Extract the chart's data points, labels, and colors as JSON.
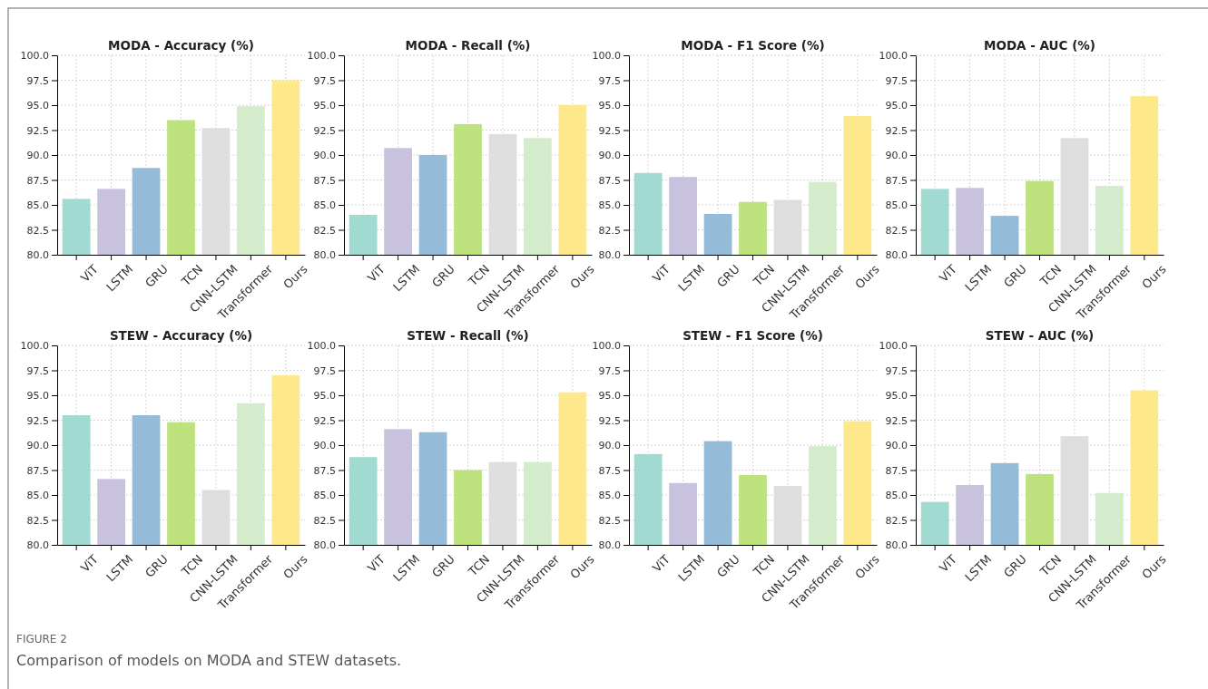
{
  "chart_data": [
    {
      "type": "bar",
      "title": "MODA - Accuracy (%)",
      "categories": [
        "ViT",
        "LSTM",
        "GRU",
        "TCN",
        "CNN-LSTM",
        "Transformer",
        "Ours"
      ],
      "values": [
        85.6,
        86.6,
        88.7,
        93.5,
        92.7,
        94.9,
        97.5
      ],
      "colors": [
        "#a0dad0",
        "#c8c2df",
        "#94bcd9",
        "#bde27e",
        "#dedede",
        "#d3edcc",
        "#fde98b"
      ],
      "ylim": [
        80,
        100
      ],
      "yticks": [
        {
          "value": 80,
          "label": "80.0"
        },
        {
          "value": 82.5,
          "label": "82.5"
        },
        {
          "value": 85,
          "label": "85.0"
        },
        {
          "value": 87.5,
          "label": "87.5"
        },
        {
          "value": 90,
          "label": "90.0"
        },
        {
          "value": 92.5,
          "label": "92.5"
        },
        {
          "value": 95,
          "label": "95.0"
        },
        {
          "value": 97.5,
          "label": "97.5"
        },
        {
          "value": 100,
          "label": "100.0"
        }
      ],
      "grid": true,
      "annotations": [
        "FIGURE 2",
        "Comparison of models on MODA and STEW datasets."
      ]
    },
    {
      "type": "bar",
      "title": "MODA - Recall (%)",
      "categories": [
        "ViT",
        "LSTM",
        "GRU",
        "TCN",
        "CNN-LSTM",
        "Transformer",
        "Ours"
      ],
      "values": [
        84.0,
        90.7,
        90.0,
        93.1,
        92.1,
        91.7,
        95.0
      ],
      "colors": [
        "#a0dad0",
        "#c8c2df",
        "#94bcd9",
        "#bde27e",
        "#dedede",
        "#d3edcc",
        "#fde98b"
      ],
      "ylim": [
        80,
        100
      ],
      "yticks": [
        {
          "value": 80,
          "label": "80.0"
        },
        {
          "value": 82.5,
          "label": "82.5"
        },
        {
          "value": 85,
          "label": "85.0"
        },
        {
          "value": 87.5,
          "label": "87.5"
        },
        {
          "value": 90,
          "label": "90.0"
        },
        {
          "value": 92.5,
          "label": "92.5"
        },
        {
          "value": 95,
          "label": "95.0"
        },
        {
          "value": 97.5,
          "label": "97.5"
        },
        {
          "value": 100,
          "label": "100.0"
        }
      ],
      "grid": true
    },
    {
      "type": "bar",
      "title": "MODA - F1 Score (%)",
      "categories": [
        "ViT",
        "LSTM",
        "GRU",
        "TCN",
        "CNN-LSTM",
        "Transformer",
        "Ours"
      ],
      "values": [
        88.2,
        87.8,
        84.1,
        85.3,
        85.5,
        87.3,
        93.9
      ],
      "colors": [
        "#a0dad0",
        "#c8c2df",
        "#94bcd9",
        "#bde27e",
        "#dedede",
        "#d3edcc",
        "#fde98b"
      ],
      "ylim": [
        80,
        100
      ],
      "yticks": [
        {
          "value": 80,
          "label": "80.0"
        },
        {
          "value": 82.5,
          "label": "82.5"
        },
        {
          "value": 85,
          "label": "85.0"
        },
        {
          "value": 87.5,
          "label": "87.5"
        },
        {
          "value": 90,
          "label": "90.0"
        },
        {
          "value": 92.5,
          "label": "92.5"
        },
        {
          "value": 95,
          "label": "95.0"
        },
        {
          "value": 97.5,
          "label": "97.5"
        },
        {
          "value": 100,
          "label": "100.0"
        }
      ],
      "grid": true
    },
    {
      "type": "bar",
      "title": "MODA - AUC (%)",
      "categories": [
        "ViT",
        "LSTM",
        "GRU",
        "TCN",
        "CNN-LSTM",
        "Transformer",
        "Ours"
      ],
      "values": [
        86.6,
        86.7,
        83.9,
        87.4,
        91.7,
        86.9,
        95.9
      ],
      "colors": [
        "#a0dad0",
        "#c8c2df",
        "#94bcd9",
        "#bde27e",
        "#dedede",
        "#d3edcc",
        "#fde98b"
      ],
      "ylim": [
        80,
        100
      ],
      "yticks": [
        {
          "value": 80,
          "label": "80.0"
        },
        {
          "value": 82.5,
          "label": "82.5"
        },
        {
          "value": 85,
          "label": "85.0"
        },
        {
          "value": 87.5,
          "label": "87.5"
        },
        {
          "value": 90,
          "label": "90.0"
        },
        {
          "value": 92.5,
          "label": "92.5"
        },
        {
          "value": 95,
          "label": "95.0"
        },
        {
          "value": 97.5,
          "label": "97.5"
        },
        {
          "value": 100,
          "label": "100.0"
        }
      ],
      "grid": true
    },
    {
      "type": "bar",
      "title": "STEW - Accuracy (%)",
      "categories": [
        "ViT",
        "LSTM",
        "GRU",
        "TCN",
        "CNN-LSTM",
        "Transformer",
        "Ours"
      ],
      "values": [
        93.0,
        86.6,
        93.0,
        92.3,
        85.5,
        94.2,
        97.0
      ],
      "colors": [
        "#a0dad0",
        "#c8c2df",
        "#94bcd9",
        "#bde27e",
        "#dedede",
        "#d3edcc",
        "#fde98b"
      ],
      "ylim": [
        80,
        100
      ],
      "yticks": [
        {
          "value": 80,
          "label": "80.0"
        },
        {
          "value": 82.5,
          "label": "82.5"
        },
        {
          "value": 85,
          "label": "85.0"
        },
        {
          "value": 87.5,
          "label": "87.5"
        },
        {
          "value": 90,
          "label": "90.0"
        },
        {
          "value": 92.5,
          "label": "92.5"
        },
        {
          "value": 95,
          "label": "95.0"
        },
        {
          "value": 97.5,
          "label": "97.5"
        },
        {
          "value": 100,
          "label": "100.0"
        }
      ],
      "grid": true
    },
    {
      "type": "bar",
      "title": "STEW - Recall (%)",
      "categories": [
        "ViT",
        "LSTM",
        "GRU",
        "TCN",
        "CNN-LSTM",
        "Transformer",
        "Ours"
      ],
      "values": [
        88.8,
        91.6,
        91.3,
        87.5,
        88.3,
        88.3,
        95.3
      ],
      "colors": [
        "#a0dad0",
        "#c8c2df",
        "#94bcd9",
        "#bde27e",
        "#dedede",
        "#d3edcc",
        "#fde98b"
      ],
      "ylim": [
        80,
        100
      ],
      "yticks": [
        {
          "value": 80,
          "label": "80.0"
        },
        {
          "value": 82.5,
          "label": "82.5"
        },
        {
          "value": 85,
          "label": "85.0"
        },
        {
          "value": 87.5,
          "label": "87.5"
        },
        {
          "value": 90,
          "label": "90.0"
        },
        {
          "value": 92.5,
          "label": "92.5"
        },
        {
          "value": 95,
          "label": "95.0"
        },
        {
          "value": 97.5,
          "label": "97.5"
        },
        {
          "value": 100,
          "label": "100.0"
        }
      ],
      "grid": true
    },
    {
      "type": "bar",
      "title": "STEW - F1 Score (%)",
      "categories": [
        "ViT",
        "LSTM",
        "GRU",
        "TCN",
        "CNN-LSTM",
        "Transformer",
        "Ours"
      ],
      "values": [
        89.1,
        86.2,
        90.4,
        87.0,
        85.9,
        89.9,
        92.4
      ],
      "colors": [
        "#a0dad0",
        "#c8c2df",
        "#94bcd9",
        "#bde27e",
        "#dedede",
        "#d3edcc",
        "#fde98b"
      ],
      "ylim": [
        80,
        100
      ],
      "yticks": [
        {
          "value": 80,
          "label": "80.0"
        },
        {
          "value": 82.5,
          "label": "82.5"
        },
        {
          "value": 85,
          "label": "85.0"
        },
        {
          "value": 87.5,
          "label": "87.5"
        },
        {
          "value": 90,
          "label": "90.0"
        },
        {
          "value": 92.5,
          "label": "92.5"
        },
        {
          "value": 95,
          "label": "95.0"
        },
        {
          "value": 97.5,
          "label": "97.5"
        },
        {
          "value": 100,
          "label": "100.0"
        }
      ],
      "grid": true
    },
    {
      "type": "bar",
      "title": "STEW - AUC (%)",
      "categories": [
        "ViT",
        "LSTM",
        "GRU",
        "TCN",
        "CNN-LSTM",
        "Transformer",
        "Ours"
      ],
      "values": [
        84.3,
        86.0,
        88.2,
        87.1,
        90.9,
        85.2,
        95.5
      ],
      "colors": [
        "#a0dad0",
        "#c8c2df",
        "#94bcd9",
        "#bde27e",
        "#dedede",
        "#d3edcc",
        "#fde98b"
      ],
      "ylim": [
        80,
        100
      ],
      "yticks": [
        {
          "value": 80,
          "label": "80.0"
        },
        {
          "value": 82.5,
          "label": "82.5"
        },
        {
          "value": 85,
          "label": "85.0"
        },
        {
          "value": 87.5,
          "label": "87.5"
        },
        {
          "value": 90,
          "label": "90.0"
        },
        {
          "value": 92.5,
          "label": "92.5"
        },
        {
          "value": 95,
          "label": "95.0"
        },
        {
          "value": 97.5,
          "label": "97.5"
        },
        {
          "value": 100,
          "label": "100.0"
        }
      ],
      "grid": true
    }
  ]
}
